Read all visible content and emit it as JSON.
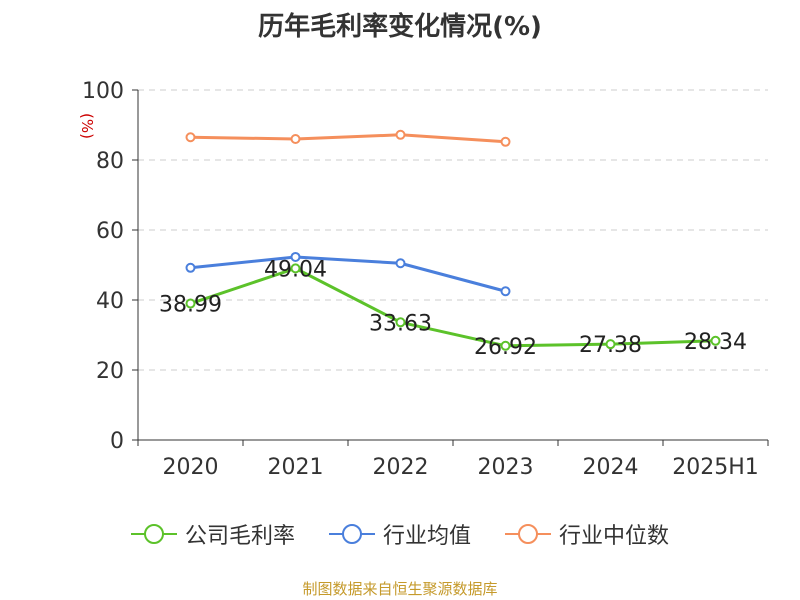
{
  "title": "历年毛利率变化情况(%)",
  "source": "制图数据来自恒生聚源数据库",
  "chart_data": {
    "type": "line",
    "categories": [
      "2020",
      "2021",
      "2022",
      "2023",
      "2024",
      "2025H1"
    ],
    "ylabel": "(%)",
    "ylim": [
      0,
      100
    ],
    "yticks": [
      "0",
      "20",
      "40",
      "60",
      "80",
      "100"
    ],
    "grid": true,
    "legend_placement": "bottom",
    "series": [
      {
        "name": "公司毛利率",
        "color": "#5cc22a",
        "values": [
          38.99,
          49.04,
          33.63,
          26.92,
          27.38,
          28.34
        ],
        "labels": [
          "38.99",
          "49.04",
          "33.63",
          "26.92",
          "27.38",
          "28.34"
        ]
      },
      {
        "name": "行业均值",
        "color": "#4a7fdc",
        "values": [
          49.2,
          52.3,
          50.5,
          42.5,
          null,
          null
        ]
      },
      {
        "name": "行业中位数",
        "color": "#f58f5c",
        "values": [
          86.5,
          86.0,
          87.2,
          85.2,
          null,
          null
        ]
      }
    ]
  }
}
